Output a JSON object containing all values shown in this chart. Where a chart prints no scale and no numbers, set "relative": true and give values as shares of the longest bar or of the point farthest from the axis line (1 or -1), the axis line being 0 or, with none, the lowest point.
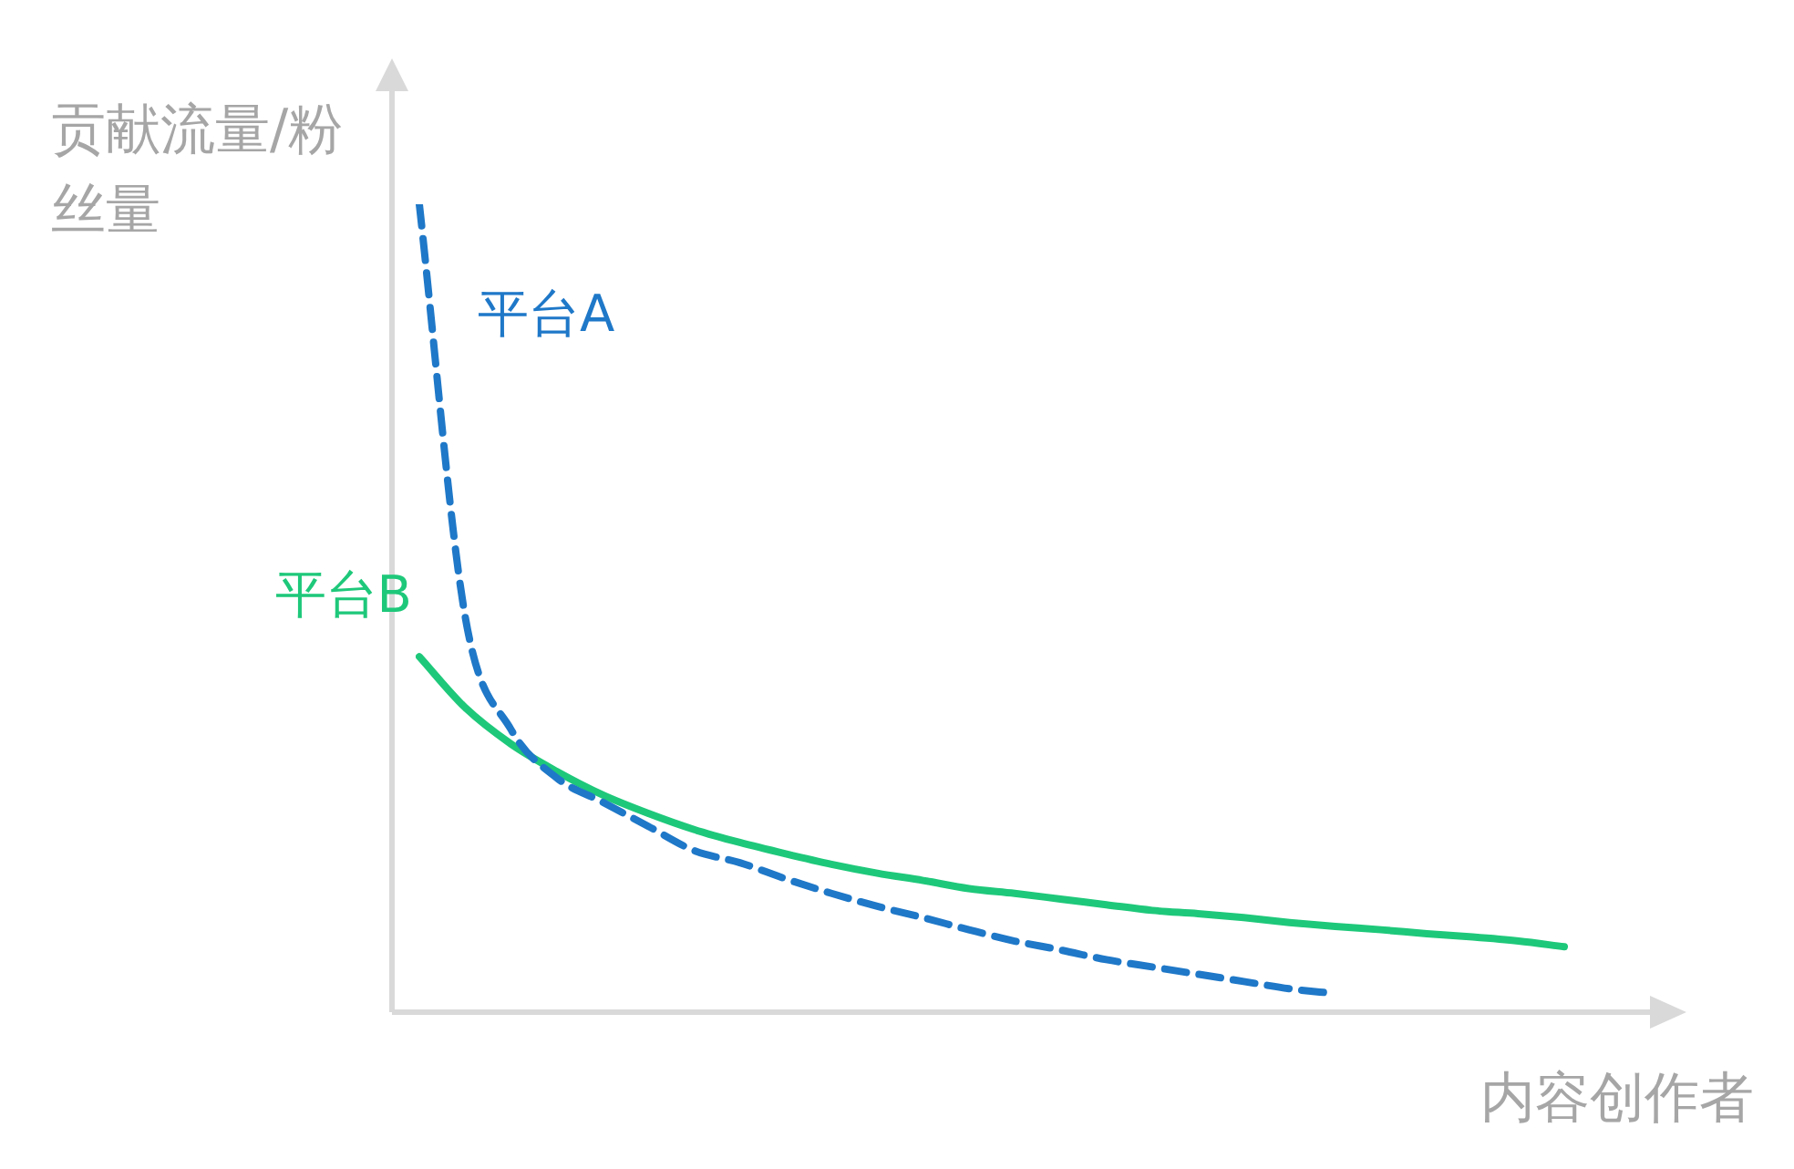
{
  "chart_data": {
    "type": "line",
    "xlabel": "内容创作者",
    "ylabel": "贡献流量/粉丝量",
    "relative": true,
    "marker": "none",
    "categories": [
      null,
      null,
      null,
      null,
      null,
      null,
      null,
      null,
      null,
      null,
      null,
      null,
      null,
      null,
      null,
      null,
      null,
      null,
      null,
      null,
      null,
      null,
      null,
      null,
      null,
      null
    ],
    "series": [
      {
        "name": "平台A",
        "color": "#1f78c8",
        "line_style": "dashed",
        "values": [
          1.0,
          0.49,
          0.35,
          0.29,
          0.26,
          0.23,
          0.2,
          0.185,
          0.165,
          0.147,
          0.131,
          0.117,
          0.102,
          0.088,
          0.077,
          0.065,
          0.056,
          0.047,
          0.038,
          0.029,
          0.023,
          null,
          null,
          null,
          null,
          null
        ]
      },
      {
        "name": "平台B",
        "color": "#1ec87a",
        "line_style": "solid",
        "values": [
          0.44,
          0.377,
          0.332,
          0.298,
          0.269,
          0.246,
          0.226,
          0.21,
          0.196,
          0.183,
          0.172,
          0.163,
          0.153,
          0.147,
          0.14,
          0.133,
          0.126,
          0.122,
          0.117,
          0.111,
          0.106,
          0.102,
          0.097,
          0.093,
          0.088,
          0.081
        ]
      }
    ]
  }
}
